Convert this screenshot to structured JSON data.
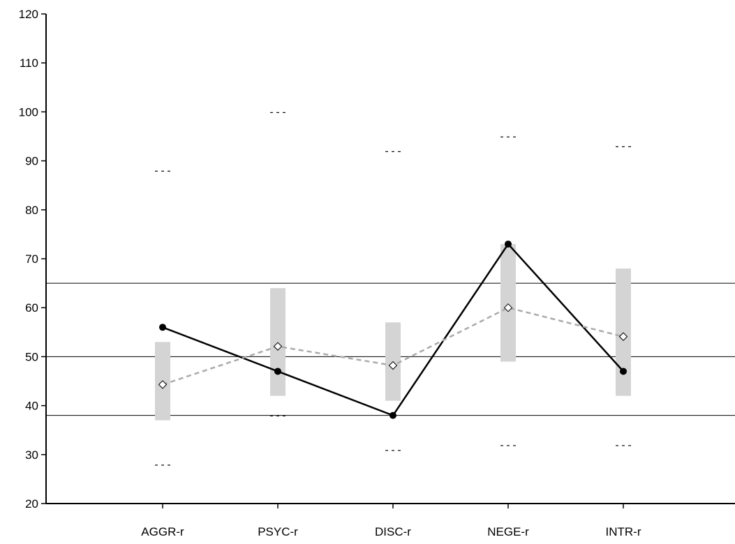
{
  "chart_data": {
    "type": "line",
    "title": "",
    "xlabel": "",
    "ylabel": "",
    "categories": [
      "AGGR-r",
      "PSYC-r",
      "DISC-r",
      "NEGE-r",
      "INTR-r"
    ],
    "ylim": [
      20,
      120
    ],
    "yticks": [
      20,
      30,
      40,
      50,
      60,
      70,
      80,
      90,
      100,
      110,
      120
    ],
    "grid": false,
    "legend": "none",
    "reference_lines": [
      38,
      50,
      65
    ],
    "series": [
      {
        "values": [
          56,
          47,
          38,
          73,
          47
        ],
        "style": "solid",
        "marker": "filled-circle",
        "color": "#000000"
      },
      {
        "values": [
          44.3,
          52.1,
          48.2,
          60,
          54.1
        ],
        "style": "dashed",
        "marker": "open-diamond",
        "color": "#aaaaaa"
      }
    ],
    "bands": [
      {
        "low": 37,
        "high": 53
      },
      {
        "low": 42,
        "high": 64
      },
      {
        "low": 41,
        "high": 57
      },
      {
        "low": 49,
        "high": 73
      },
      {
        "low": 42,
        "high": 68
      }
    ],
    "range_marks": {
      "symbol": "---",
      "high": [
        88,
        100,
        92,
        95,
        93
      ],
      "low": [
        28,
        38,
        31,
        32,
        32
      ]
    },
    "colors": {
      "band": "#d4d4d4",
      "axis": "#000000",
      "reference": "#000000"
    }
  }
}
